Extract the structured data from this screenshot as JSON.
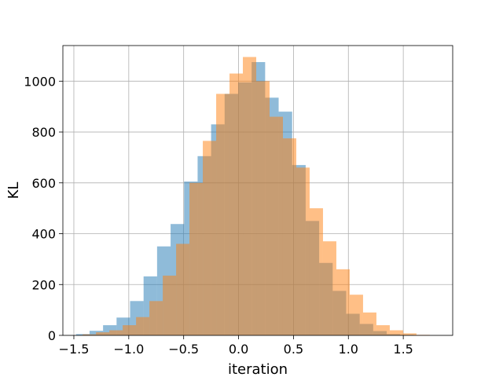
{
  "chart_data": {
    "type": "bar",
    "subtype": "overlapping-histogram",
    "title": "",
    "xlabel": "iteration",
    "ylabel": "KL",
    "xlim": [
      -1.6,
      1.95
    ],
    "ylim": [
      0,
      1140
    ],
    "xticks": [
      -1.5,
      -1.0,
      -0.5,
      0.0,
      0.5,
      1.0,
      1.5
    ],
    "xtick_labels": [
      "−1.5",
      "−1.0",
      "−0.5",
      "0.0",
      "0.5",
      "1.0",
      "1.5"
    ],
    "yticks": [
      0,
      200,
      400,
      600,
      800,
      1000
    ],
    "ytick_labels": [
      "0",
      "200",
      "400",
      "600",
      "800",
      "1000"
    ],
    "grid": true,
    "legend": "none",
    "series": [
      {
        "color": "#1f77b4",
        "opacity": 0.5,
        "bin_width": 0.123,
        "bins": [
          {
            "x0": -1.48,
            "count": 5
          },
          {
            "x0": -1.357,
            "count": 18
          },
          {
            "x0": -1.234,
            "count": 40
          },
          {
            "x0": -1.111,
            "count": 70
          },
          {
            "x0": -0.988,
            "count": 135
          },
          {
            "x0": -0.865,
            "count": 232
          },
          {
            "x0": -0.742,
            "count": 350
          },
          {
            "x0": -0.619,
            "count": 438
          },
          {
            "x0": -0.496,
            "count": 605
          },
          {
            "x0": -0.373,
            "count": 705
          },
          {
            "x0": -0.25,
            "count": 830
          },
          {
            "x0": -0.127,
            "count": 950
          },
          {
            "x0": -0.004,
            "count": 995
          },
          {
            "x0": 0.119,
            "count": 1075
          },
          {
            "x0": 0.242,
            "count": 935
          },
          {
            "x0": 0.365,
            "count": 880
          },
          {
            "x0": 0.488,
            "count": 670
          },
          {
            "x0": 0.611,
            "count": 450
          },
          {
            "x0": 0.734,
            "count": 285
          },
          {
            "x0": 0.857,
            "count": 175
          },
          {
            "x0": 0.98,
            "count": 85
          },
          {
            "x0": 1.103,
            "count": 45
          },
          {
            "x0": 1.226,
            "count": 17
          },
          {
            "x0": 1.349,
            "count": 5
          },
          {
            "x0": 1.472,
            "count": 2
          }
        ]
      },
      {
        "color": "#ff7f0e",
        "opacity": 0.5,
        "bin_width": 0.1216,
        "bins": [
          {
            "x0": -1.42,
            "count": 4
          },
          {
            "x0": -1.2984,
            "count": 12
          },
          {
            "x0": -1.1768,
            "count": 20
          },
          {
            "x0": -1.0552,
            "count": 40
          },
          {
            "x0": -0.9336,
            "count": 72
          },
          {
            "x0": -0.812,
            "count": 135
          },
          {
            "x0": -0.6904,
            "count": 235
          },
          {
            "x0": -0.5688,
            "count": 360
          },
          {
            "x0": -0.4472,
            "count": 600
          },
          {
            "x0": -0.3256,
            "count": 765
          },
          {
            "x0": -0.204,
            "count": 950
          },
          {
            "x0": -0.0824,
            "count": 1030
          },
          {
            "x0": 0.0392,
            "count": 1095
          },
          {
            "x0": 0.1608,
            "count": 1000
          },
          {
            "x0": 0.2824,
            "count": 860
          },
          {
            "x0": 0.404,
            "count": 775
          },
          {
            "x0": 0.5256,
            "count": 660
          },
          {
            "x0": 0.6472,
            "count": 500
          },
          {
            "x0": 0.7688,
            "count": 370
          },
          {
            "x0": 0.8904,
            "count": 260
          },
          {
            "x0": 1.012,
            "count": 160
          },
          {
            "x0": 1.1336,
            "count": 90
          },
          {
            "x0": 1.2552,
            "count": 40
          },
          {
            "x0": 1.3768,
            "count": 20
          },
          {
            "x0": 1.4984,
            "count": 8
          },
          {
            "x0": 1.62,
            "count": 2
          }
        ]
      }
    ]
  }
}
